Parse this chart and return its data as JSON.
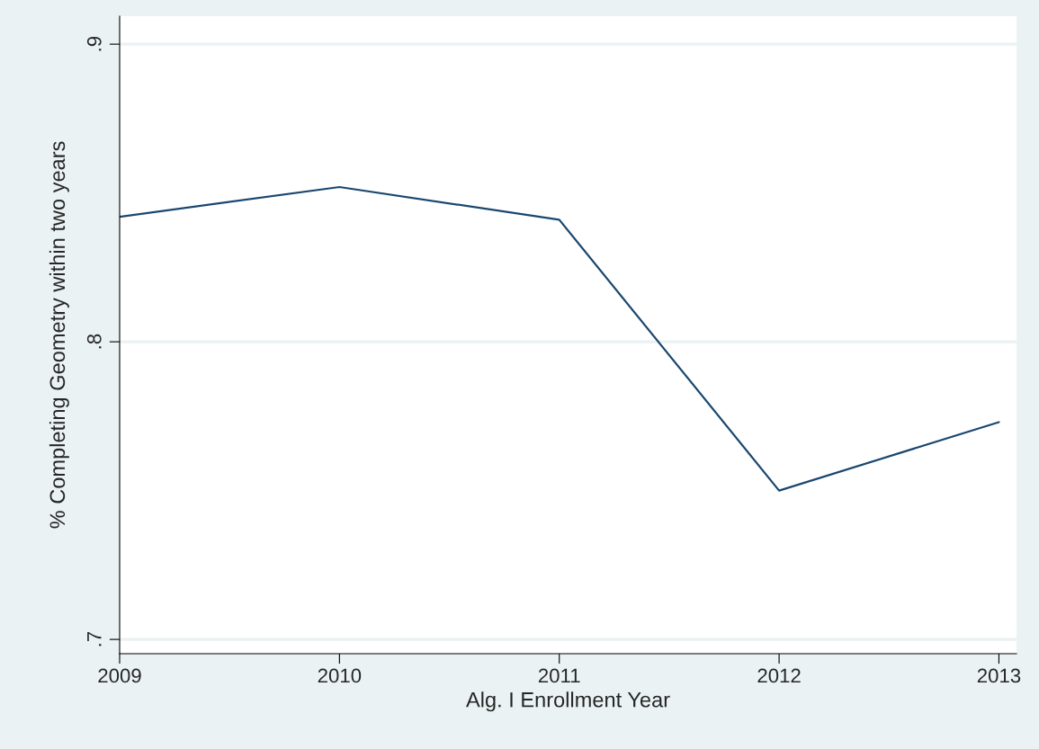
{
  "chart_data": {
    "type": "line",
    "xlabel": "Alg. I Enrollment Year",
    "ylabel": "% Completing Geometry within two years",
    "x": [
      2009,
      2010,
      2011,
      2012,
      2013
    ],
    "series": [
      {
        "color": "#1a476f",
        "values": [
          0.842,
          0.852,
          0.841,
          0.75,
          0.773
        ]
      }
    ],
    "xlim": [
      2009,
      2013.08
    ],
    "xticks": [
      2009,
      2010,
      2011,
      2012,
      2013
    ],
    "ylim": [
      0.6952,
      0.9094
    ],
    "yticks": [
      {
        "value": 0.7,
        "label": ".7"
      },
      {
        "value": 0.8,
        "label": ".8"
      },
      {
        "value": 0.9,
        "label": ".9"
      }
    ],
    "grid": "y",
    "legend": false,
    "marker": "none",
    "line_style": "solid"
  }
}
